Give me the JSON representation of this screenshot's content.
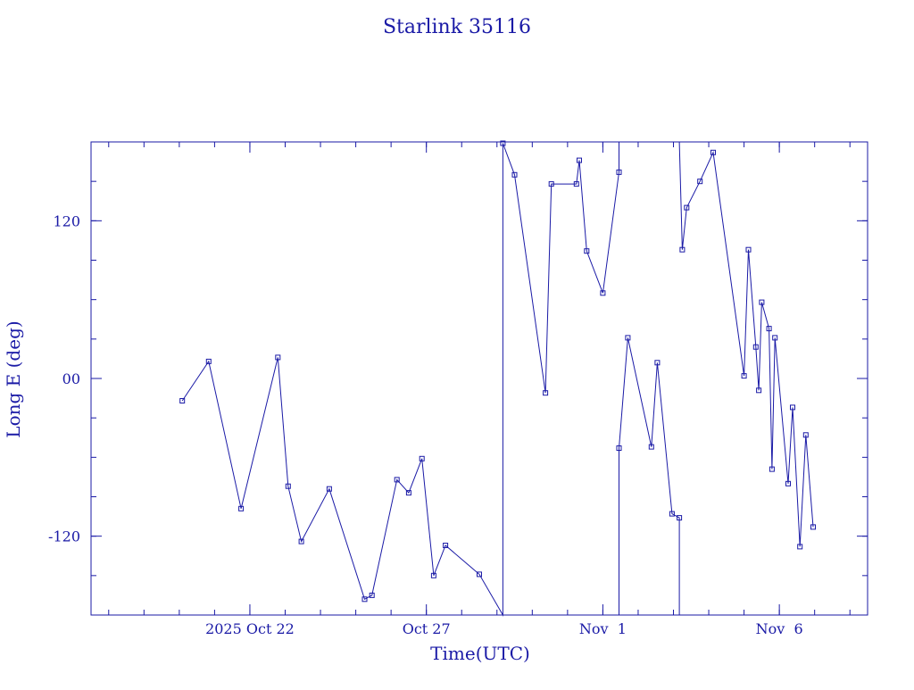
{
  "colors": {
    "ink": "#1a1aa6",
    "background": "#ffffff"
  },
  "chart_data": {
    "type": "line",
    "title": "Starlink 35116",
    "xlabel": "Time(UTC)",
    "ylabel": "Long E (deg)",
    "xlim": [
      "2025-10-17T12:00",
      "2025-11-08T12:00"
    ],
    "ylim": [
      -180,
      180
    ],
    "grid": false,
    "marker": "square",
    "x_tick_labels": [
      {
        "at": "2025-10-22T00:00",
        "label": "2025 Oct 22"
      },
      {
        "at": "2025-10-27T00:00",
        "label": "Oct 27"
      },
      {
        "at": "2025-11-01T00:00",
        "label": "Nov  1"
      },
      {
        "at": "2025-11-06T00:00",
        "label": "Nov  6"
      }
    ],
    "y_tick_labels": [
      {
        "at": 120,
        "label": "120"
      },
      {
        "at": 0,
        "label": "00"
      },
      {
        "at": -120,
        "label": "-120"
      }
    ],
    "x_minor_ticks": [
      "2025-10-18T00:00",
      "2025-10-19T00:00",
      "2025-10-20T00:00",
      "2025-10-21T00:00",
      "2025-10-22T00:00",
      "2025-10-23T00:00",
      "2025-10-24T00:00",
      "2025-10-25T00:00",
      "2025-10-26T00:00",
      "2025-10-27T00:00",
      "2025-10-28T00:00",
      "2025-10-29T00:00",
      "2025-10-30T00:00",
      "2025-10-31T00:00",
      "2025-11-01T00:00",
      "2025-11-02T00:00",
      "2025-11-03T00:00",
      "2025-11-04T00:00",
      "2025-11-05T00:00",
      "2025-11-06T00:00",
      "2025-11-07T00:00",
      "2025-11-08T00:00"
    ],
    "y_minor_ticks": [
      -150,
      -120,
      -90,
      -60,
      -30,
      0,
      30,
      60,
      90,
      120,
      150
    ],
    "points": [
      [
        "2025-10-20T02:00",
        -17,
        true
      ],
      [
        "2025-10-20T20:00",
        13,
        true
      ],
      [
        "2025-10-21T18:00",
        -99,
        true
      ],
      [
        "2025-10-22T19:00",
        16,
        true
      ],
      [
        "2025-10-23T02:00",
        -82,
        true
      ],
      [
        "2025-10-23T11:00",
        -124,
        true
      ],
      [
        "2025-10-24T06:00",
        -84,
        true
      ],
      [
        "2025-10-25T06:00",
        -168,
        true
      ],
      [
        "2025-10-25T11:00",
        -165,
        true
      ],
      [
        "2025-10-26T04:00",
        -77,
        true
      ],
      [
        "2025-10-26T12:00",
        -87,
        true
      ],
      [
        "2025-10-26T21:00",
        -61,
        true
      ],
      [
        "2025-10-27T05:00",
        -150,
        true
      ],
      [
        "2025-10-27T13:00",
        -127,
        true
      ],
      [
        "2025-10-28T12:00",
        -149,
        true
      ],
      [
        "2025-10-29T04:00",
        -180,
        false
      ],
      [
        "2025-10-29T04:00",
        179,
        true
      ],
      [
        "2025-10-29T12:00",
        155,
        true
      ],
      [
        "2025-10-30T09:00",
        -11,
        true
      ],
      [
        "2025-10-30T13:00",
        148,
        true
      ],
      [
        "2025-10-31T06:00",
        148,
        true
      ],
      [
        "2025-10-31T08:00",
        166,
        true
      ],
      [
        "2025-10-31T13:00",
        97,
        true
      ],
      [
        "2025-11-01T00:00",
        65,
        true
      ],
      [
        "2025-11-01T11:00",
        157,
        true
      ],
      [
        "2025-11-01T11:00",
        180,
        false
      ],
      [
        "2025-11-01T11:00",
        -180,
        false
      ],
      [
        "2025-11-01T11:00",
        -53,
        true
      ],
      [
        "2025-11-01T17:00",
        31,
        true
      ],
      [
        "2025-11-02T09:00",
        -52,
        true
      ],
      [
        "2025-11-02T13:00",
        12,
        true
      ],
      [
        "2025-11-02T23:00",
        -103,
        true
      ],
      [
        "2025-11-03T04:00",
        -106,
        true
      ],
      [
        "2025-11-03T04:00",
        -180,
        false
      ],
      [
        "2025-11-03T04:00",
        180,
        false
      ],
      [
        "2025-11-03T06:00",
        98,
        true
      ],
      [
        "2025-11-03T09:00",
        130,
        true
      ],
      [
        "2025-11-03T18:00",
        150,
        true
      ],
      [
        "2025-11-04T03:00",
        172,
        true
      ],
      [
        "2025-11-05T00:00",
        2,
        true
      ],
      [
        "2025-11-05T03:00",
        98,
        true
      ],
      [
        "2025-11-05T08:00",
        24,
        true
      ],
      [
        "2025-11-05T10:00",
        -9,
        true
      ],
      [
        "2025-11-05T12:00",
        58,
        true
      ],
      [
        "2025-11-05T17:00",
        38,
        true
      ],
      [
        "2025-11-05T19:00",
        -69,
        true
      ],
      [
        "2025-11-05T21:00",
        31,
        true
      ],
      [
        "2025-11-06T06:00",
        -80,
        true
      ],
      [
        "2025-11-06T09:00",
        -22,
        true
      ],
      [
        "2025-11-06T14:00",
        -128,
        true
      ],
      [
        "2025-11-06T18:00",
        -43,
        true
      ],
      [
        "2025-11-06T23:00",
        -113,
        true
      ]
    ]
  }
}
